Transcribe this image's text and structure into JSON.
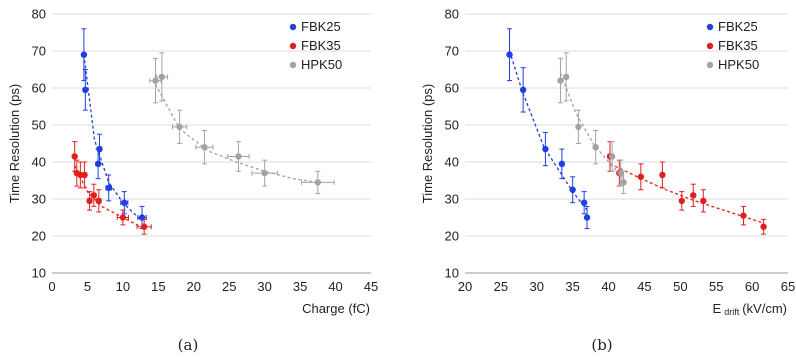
{
  "chart_data": [
    {
      "type": "scatter",
      "panel_label": "(a)",
      "xlabel": "Charge (fC)",
      "ylabel": "Time Resolution (ps)",
      "xlim": [
        0,
        45
      ],
      "ylim": [
        10,
        80
      ],
      "xticks": [
        "0",
        "5",
        "10",
        "15",
        "20",
        "25",
        "30",
        "35",
        "40",
        "45"
      ],
      "yticks": [
        "10",
        "20",
        "30",
        "40",
        "50",
        "60",
        "70",
        "80"
      ],
      "grid": "horizontal",
      "legend_position": "top-right",
      "error_bars": true,
      "trendline": "dashed",
      "series": [
        {
          "name": "FBK25",
          "color": "#1f3fe0",
          "x": [
            4.5,
            4.7,
            6.5,
            6.7,
            8.0,
            10.2,
            12.7
          ],
          "y": [
            69,
            59.5,
            39.5,
            43.5,
            33,
            29,
            25
          ],
          "yerr": [
            7,
            5.5,
            4,
            4,
            3.5,
            3,
            3
          ],
          "xerr": [
            0.2,
            0.2,
            0.3,
            0.3,
            0.4,
            0.5,
            0.6
          ],
          "fit_x": [
            4.5,
            6,
            8,
            10,
            12.7
          ],
          "fit_y": [
            69,
            46,
            34.5,
            29,
            24
          ]
        },
        {
          "name": "FBK35",
          "color": "#e01f1f",
          "x": [
            3.2,
            3.5,
            4.0,
            4.6,
            5.3,
            5.9,
            6.6,
            10.0,
            13.0
          ],
          "y": [
            41.5,
            37,
            36.5,
            36.5,
            29.5,
            31,
            29.5,
            25,
            22.5
          ],
          "yerr": [
            4,
            3.5,
            3.5,
            3.5,
            2.5,
            3,
            3,
            2,
            2
          ],
          "xerr": [
            0.2,
            0.2,
            0.2,
            0.2,
            0.3,
            0.3,
            0.3,
            0.8,
            1.0
          ],
          "fit_x": [
            3.2,
            5,
            7,
            10,
            13
          ],
          "fit_y": [
            39,
            32,
            28,
            25,
            22
          ]
        },
        {
          "name": "HPK50",
          "color": "#a3a3a3",
          "x": [
            14.6,
            15.5,
            18.0,
            21.5,
            26.3,
            30.0,
            37.5
          ],
          "y": [
            62,
            63,
            49.5,
            44,
            41.5,
            37,
            34.5
          ],
          "yerr": [
            6,
            6.5,
            4.5,
            4.5,
            4,
            3.5,
            3
          ],
          "xerr": [
            0.8,
            0.8,
            1.0,
            1.2,
            1.5,
            1.8,
            2.3
          ],
          "fit_x": [
            14.6,
            18,
            22,
            26,
            30,
            34,
            37.5
          ],
          "fit_y": [
            61,
            49,
            43,
            40,
            37.5,
            35.5,
            34.5
          ]
        }
      ]
    },
    {
      "type": "scatter",
      "panel_label": "(b)",
      "xlabel_main": "E",
      "xlabel_sub": "drift",
      "xlabel_unit": "(kV/cm)",
      "ylabel": "Time Resolution (ps)",
      "xlim": [
        20,
        65
      ],
      "ylim": [
        10,
        80
      ],
      "xticks": [
        "20",
        "25",
        "30",
        "35",
        "40",
        "45",
        "50",
        "55",
        "60",
        "65"
      ],
      "yticks": [
        "10",
        "20",
        "30",
        "40",
        "50",
        "60",
        "70",
        "80"
      ],
      "grid": "horizontal",
      "legend_position": "top-right",
      "error_bars": true,
      "trendline": "dashed",
      "series": [
        {
          "name": "FBK25",
          "color": "#1f3fe0",
          "x": [
            26.2,
            28.1,
            31.2,
            33.5,
            35.0,
            36.6,
            37.0
          ],
          "y": [
            69,
            59.5,
            43.5,
            39.5,
            32.5,
            29,
            25
          ],
          "yerr": [
            7,
            6,
            4.5,
            4,
            3.5,
            3,
            3
          ],
          "xerr": [
            0,
            0,
            0,
            0,
            0,
            0,
            0
          ],
          "fit_x": [
            26.2,
            28,
            31,
            33.5,
            35,
            37
          ],
          "fit_y": [
            70,
            59,
            44,
            36.5,
            32,
            27
          ]
        },
        {
          "name": "FBK35",
          "color": "#e01f1f",
          "x": [
            40.2,
            41.5,
            44.5,
            47.5,
            50.2,
            51.8,
            53.2,
            58.8,
            61.6
          ],
          "y": [
            41.5,
            37,
            36,
            36.5,
            29.5,
            31,
            29.5,
            25.5,
            22.5
          ],
          "yerr": [
            4,
            3.5,
            3.5,
            3.5,
            2.5,
            3,
            3,
            2.5,
            2
          ],
          "xerr": [
            0,
            0,
            0,
            0,
            0,
            0,
            0,
            0,
            0
          ],
          "fit_x": [
            40.2,
            44,
            48,
            52,
            56,
            61.6
          ],
          "fit_y": [
            39.5,
            36,
            32.5,
            29.5,
            27,
            23.5
          ]
        },
        {
          "name": "HPK50",
          "color": "#a3a3a3",
          "x": [
            33.3,
            34.1,
            35.8,
            38.2,
            40.5,
            41.7,
            42.1
          ],
          "y": [
            62,
            63,
            49.5,
            44,
            41.5,
            37,
            34.5
          ],
          "yerr": [
            6,
            6.5,
            4.5,
            4.5,
            4,
            3.5,
            3
          ],
          "xerr": [
            0,
            0,
            0,
            0,
            0,
            0,
            0
          ],
          "fit_x": [
            33.3,
            35.5,
            38,
            40.5,
            42.1
          ],
          "fit_y": [
            64,
            53,
            44.5,
            39,
            35.5
          ]
        }
      ]
    }
  ]
}
